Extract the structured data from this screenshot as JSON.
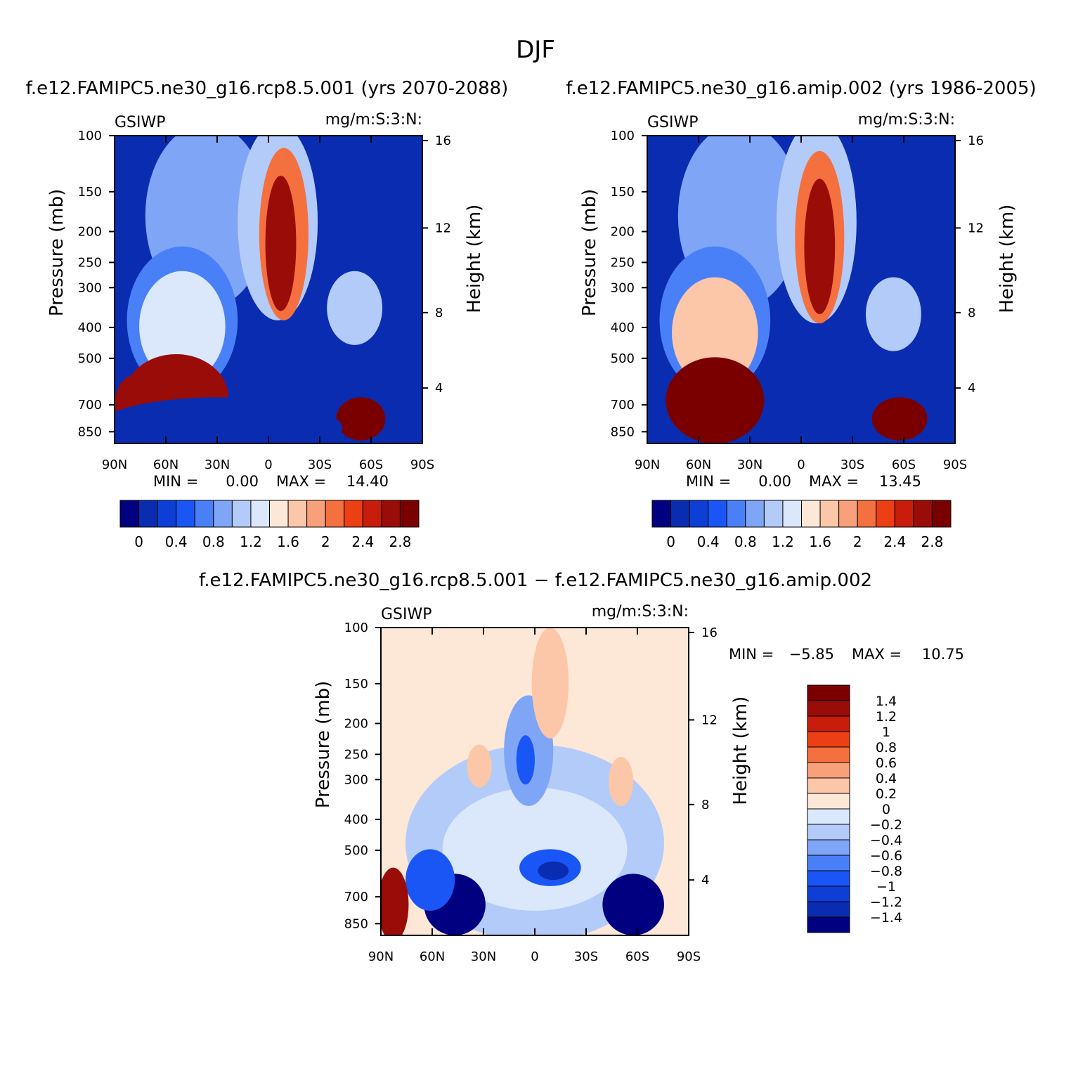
{
  "figure": {
    "title": "DJF",
    "colors": {
      "ctrl_scale": [
        "#000080",
        "#0a2cb0",
        "#0d3fd6",
        "#1a56f5",
        "#4a80f7",
        "#7fa6f6",
        "#b3cbf8",
        "#dbe8fb",
        "#fde8d8",
        "#fcc7a8",
        "#f8a07a",
        "#f4703f",
        "#ec3f14",
        "#c71d0a",
        "#9a0c08",
        "#7a0000"
      ],
      "diff_scale": [
        "#000080",
        "#0a2cb0",
        "#0d3fd6",
        "#1a56f5",
        "#4a80f7",
        "#7fa6f6",
        "#b3cbf8",
        "#dbe8fb",
        "#fde8d8",
        "#fcc7a8",
        "#f8a07a",
        "#f4703f",
        "#ec3f14",
        "#c71d0a",
        "#9a0c08",
        "#7a0000"
      ]
    }
  },
  "chart_data": [
    {
      "type": "heatmap",
      "title": "f.e12.FAMIPC5.ne30_g16.rcp8.5.001 (yrs 2070-2088)",
      "left_label": "GSIWP",
      "right_label": "mg/m:S:3:N:",
      "xlabel": "",
      "ylabel": "Pressure (mb)",
      "y2label": "Height (km)",
      "x_ticks": [
        "90N",
        "60N",
        "30N",
        "0",
        "30S",
        "60S",
        "90S"
      ],
      "y_ticks": [
        "100",
        "150",
        "200",
        "250",
        "300",
        "400",
        "500",
        "700",
        "850"
      ],
      "y2_ticks": [
        "16",
        "12",
        "8",
        "4"
      ],
      "stats": {
        "min_label": "MIN =",
        "min": "0.00",
        "max_label": "MAX =",
        "max": "14.40"
      },
      "colorbar": {
        "orientation": "horizontal",
        "labels": [
          "0",
          "0.4",
          "0.8",
          "1.2",
          "1.6",
          "2",
          "2.4",
          "2.8"
        ]
      }
    },
    {
      "type": "heatmap",
      "title": "f.e12.FAMIPC5.ne30_g16.amip.002 (yrs 1986-2005)",
      "left_label": "GSIWP",
      "right_label": "mg/m:S:3:N:",
      "xlabel": "",
      "ylabel": "Pressure (mb)",
      "y2label": "Height (km)",
      "x_ticks": [
        "90N",
        "60N",
        "30N",
        "0",
        "30S",
        "60S",
        "90S"
      ],
      "y_ticks": [
        "100",
        "150",
        "200",
        "250",
        "300",
        "400",
        "500",
        "700",
        "850"
      ],
      "y2_ticks": [
        "16",
        "12",
        "8",
        "4"
      ],
      "stats": {
        "min_label": "MIN =",
        "min": "0.00",
        "max_label": "MAX =",
        "max": "13.45"
      },
      "colorbar": {
        "orientation": "horizontal",
        "labels": [
          "0",
          "0.4",
          "0.8",
          "1.2",
          "1.6",
          "2",
          "2.4",
          "2.8"
        ]
      }
    },
    {
      "type": "heatmap",
      "title": "f.e12.FAMIPC5.ne30_g16.rcp8.5.001 − f.e12.FAMIPC5.ne30_g16.amip.002",
      "left_label": "GSIWP",
      "right_label": "mg/m:S:3:N:",
      "xlabel": "",
      "ylabel": "Pressure (mb)",
      "y2label": "Height (km)",
      "x_ticks": [
        "90N",
        "60N",
        "30N",
        "0",
        "30S",
        "60S",
        "90S"
      ],
      "y_ticks": [
        "100",
        "150",
        "200",
        "250",
        "300",
        "400",
        "500",
        "700",
        "850"
      ],
      "y2_ticks": [
        "16",
        "12",
        "8",
        "4"
      ],
      "stats": {
        "min_label": "MIN =",
        "min": "−5.85",
        "max_label": "MAX =",
        "max": "10.75"
      },
      "colorbar": {
        "orientation": "vertical",
        "labels": [
          "1.4",
          "1.2",
          "1",
          "0.8",
          "0.6",
          "0.4",
          "0.2",
          "0",
          "−0.2",
          "−0.4",
          "−0.6",
          "−0.8",
          "−1",
          "−1.2",
          "−1.4"
        ]
      }
    }
  ]
}
